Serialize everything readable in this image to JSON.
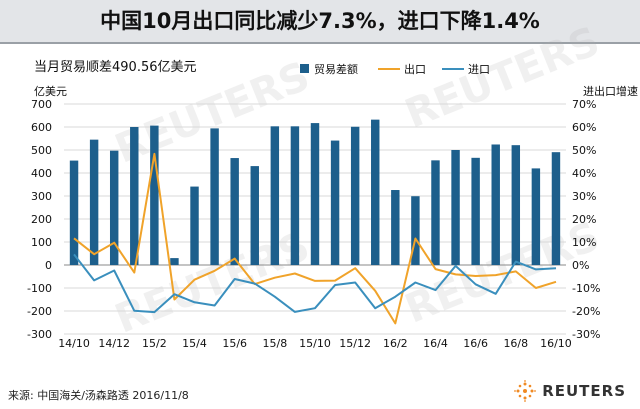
{
  "title": "中国10月出口同比减少7.3%，进口下降1.4%",
  "footer": {
    "source": "来源: 中国海关/汤森路透   2016/11/8",
    "logo_text": "REUTERS"
  },
  "colors": {
    "balance_bar": "#1d5f8c",
    "exports": "#f0a32a",
    "imports": "#3a8fbd"
  },
  "chart_data": {
    "type": "bar+line",
    "subtitle": "当月贸易顺差490.56亿美元",
    "left_axis": {
      "label": "亿美元",
      "min": -300,
      "max": 700,
      "ticks": [
        700,
        600,
        500,
        400,
        300,
        200,
        100,
        0,
        -100,
        -200,
        -300
      ]
    },
    "right_axis": {
      "label": "进出口增速",
      "min": -30,
      "max": 70,
      "ticks": [
        "70%",
        "60%",
        "50%",
        "40%",
        "30%",
        "20%",
        "10%",
        "0%",
        "-10%",
        "-20%",
        "-30%"
      ],
      "values": [
        70,
        60,
        50,
        40,
        30,
        20,
        10,
        0,
        -10,
        -20,
        -30
      ]
    },
    "categories": [
      "14/10",
      "14/11",
      "14/12",
      "15/1",
      "15/2",
      "15/3",
      "15/4",
      "15/5",
      "15/6",
      "15/7",
      "15/8",
      "15/9",
      "15/10",
      "15/11",
      "15/12",
      "16/1",
      "16/2",
      "16/3",
      "16/4",
      "16/5",
      "16/6",
      "16/7",
      "16/8",
      "16/9",
      "16/10"
    ],
    "x_tick_labels": [
      "14/10",
      "",
      "14/12",
      "",
      "15/2",
      "",
      "15/4",
      "",
      "15/6",
      "",
      "15/8",
      "",
      "15/10",
      "",
      "15/12",
      "",
      "16/2",
      "",
      "16/4",
      "",
      "16/6",
      "",
      "16/8",
      "",
      "16/10"
    ],
    "legend": [
      "贸易差额",
      "出口",
      "进口"
    ],
    "series": [
      {
        "name": "贸易差额",
        "kind": "bar",
        "axis": "left",
        "values": [
          454,
          545,
          497,
          600,
          606,
          30,
          341,
          594,
          465,
          430,
          603,
          603,
          617,
          541,
          601,
          632,
          326,
          299,
          455,
          500,
          466,
          524,
          521,
          420,
          490.56
        ]
      },
      {
        "name": "出口",
        "kind": "line",
        "axis": "right",
        "values": [
          11.6,
          4.7,
          9.7,
          -3.3,
          48.3,
          -15.0,
          -6.4,
          -2.5,
          2.8,
          -8.3,
          -5.5,
          -3.7,
          -6.9,
          -6.8,
          -1.4,
          -11.2,
          -25.4,
          11.5,
          -1.8,
          -4.1,
          -4.8,
          -4.4,
          -2.8,
          -10.0,
          -7.3
        ]
      },
      {
        "name": "进口",
        "kind": "line",
        "axis": "right",
        "values": [
          4.6,
          -6.7,
          -2.4,
          -19.9,
          -20.5,
          -12.7,
          -16.2,
          -17.6,
          -6.1,
          -8.1,
          -13.8,
          -20.4,
          -18.8,
          -8.7,
          -7.6,
          -18.8,
          -13.8,
          -7.6,
          -10.9,
          -0.4,
          -8.4,
          -12.5,
          1.5,
          -1.9,
          -1.4
        ]
      }
    ]
  }
}
